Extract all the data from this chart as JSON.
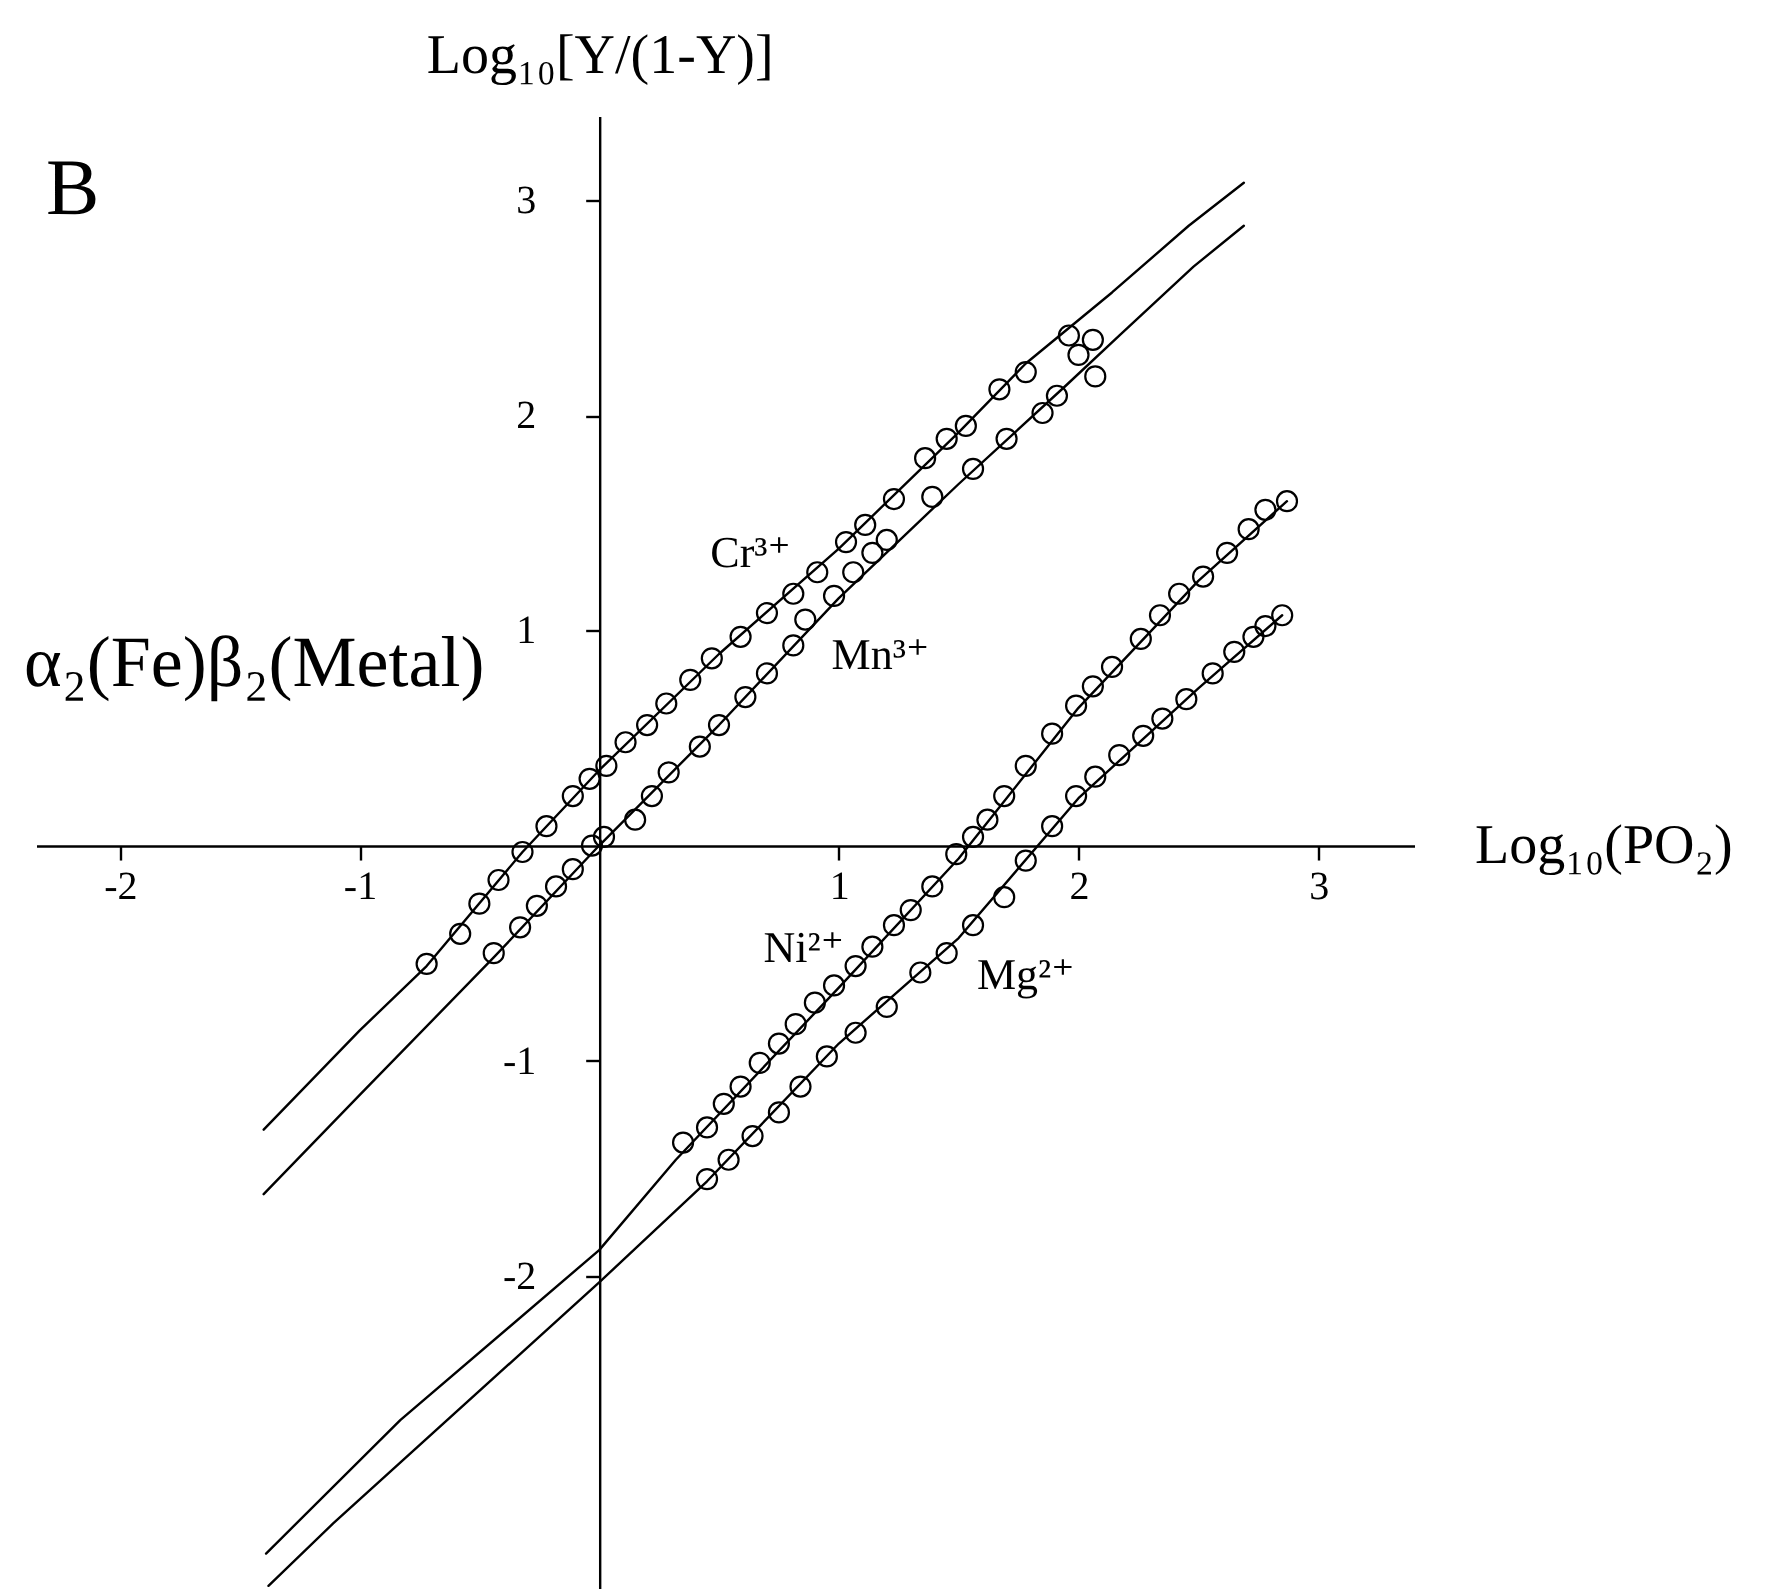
{
  "chart_data": {
    "type": "scatter",
    "annotations": [
      "B",
      "α₂(Fe)β₂(Metal)"
    ],
    "xlabel": "Log₁₀(PO₂)",
    "ylabel": "Log₁₀[Y/(1-Y)]",
    "xlim": [
      -2.35,
      3.4
    ],
    "ylim": [
      -3.45,
      3.39
    ],
    "xticks": [
      -2,
      -1,
      1,
      2,
      3
    ],
    "yticks": [
      -2,
      -1,
      1,
      2,
      3
    ],
    "marker": "circle",
    "series": [
      {
        "name": "Cr³⁺",
        "color": "#000000",
        "x": [
          -0.72,
          -0.58,
          -0.5,
          -0.42,
          -0.32,
          -0.22,
          -0.11,
          -0.04,
          0.03,
          0.11,
          0.2,
          0.28,
          0.38,
          0.47,
          0.59,
          0.7,
          0.81,
          0.91,
          1.03,
          1.11,
          1.23,
          1.36,
          1.45,
          1.53,
          1.67,
          1.78,
          1.96,
          2.0,
          2.06
        ],
        "values": [
          -0.55,
          -0.41,
          -0.27,
          -0.16,
          -0.03,
          0.09,
          0.23,
          0.31,
          0.37,
          0.48,
          0.56,
          0.66,
          0.77,
          0.87,
          0.97,
          1.08,
          1.17,
          1.27,
          1.41,
          1.49,
          1.61,
          1.8,
          1.89,
          1.95,
          2.12,
          2.2,
          2.37,
          2.28,
          2.35
        ]
      },
      {
        "name": "Mn³⁺",
        "color": "#000000",
        "x": [
          -0.44,
          -0.33,
          -0.26,
          -0.18,
          -0.11,
          -0.03,
          0.02,
          0.15,
          0.22,
          0.29,
          0.42,
          0.5,
          0.61,
          0.7,
          0.81,
          0.86,
          0.98,
          1.06,
          1.14,
          1.2,
          1.39,
          1.56,
          1.7,
          1.85,
          1.91,
          2.07
        ],
        "values": [
          -0.5,
          -0.38,
          -0.28,
          -0.19,
          -0.11,
          0.0,
          0.04,
          0.12,
          0.23,
          0.34,
          0.46,
          0.56,
          0.69,
          0.8,
          0.93,
          1.05,
          1.16,
          1.27,
          1.36,
          1.42,
          1.62,
          1.75,
          1.89,
          2.01,
          2.09,
          2.18
        ]
      },
      {
        "name": "Ni²⁺",
        "color": "#000000",
        "x": [
          0.35,
          0.45,
          0.52,
          0.59,
          0.67,
          0.75,
          0.82,
          0.9,
          0.98,
          1.07,
          1.14,
          1.23,
          1.3,
          1.39,
          1.49,
          1.56,
          1.62,
          1.69,
          1.78,
          1.89,
          1.99,
          2.06,
          2.14,
          2.26,
          2.34,
          2.42,
          2.52,
          2.62,
          2.71,
          2.78,
          2.87
        ],
        "values": [
          -1.38,
          -1.31,
          -1.2,
          -1.12,
          -1.01,
          -0.92,
          -0.83,
          -0.73,
          -0.65,
          -0.56,
          -0.47,
          -0.37,
          -0.3,
          -0.19,
          -0.04,
          0.04,
          0.12,
          0.23,
          0.37,
          0.52,
          0.65,
          0.74,
          0.83,
          0.96,
          1.07,
          1.17,
          1.25,
          1.36,
          1.47,
          1.56,
          1.6
        ]
      },
      {
        "name": "Mg²⁺",
        "color": "#000000",
        "x": [
          0.45,
          0.54,
          0.64,
          0.75,
          0.84,
          0.95,
          1.07,
          1.2,
          1.34,
          1.45,
          1.56,
          1.69,
          1.78,
          1.89,
          1.99,
          2.07,
          2.17,
          2.27,
          2.35,
          2.45,
          2.56,
          2.65,
          2.73,
          2.78,
          2.85
        ],
        "values": [
          -1.55,
          -1.46,
          -1.35,
          -1.24,
          -1.12,
          -0.98,
          -0.87,
          -0.75,
          -0.59,
          -0.5,
          -0.37,
          -0.24,
          -0.07,
          0.09,
          0.23,
          0.32,
          0.42,
          0.51,
          0.59,
          0.68,
          0.8,
          0.9,
          0.97,
          1.02,
          1.07
        ]
      },
      {
        "type": "line",
        "marker": "none",
        "color": "#000000",
        "x": [
          -1.4,
          -1.0,
          -0.72,
          -0.32,
          0,
          0.5,
          1.0,
          1.5,
          1.78,
          2.14,
          2.46,
          2.69
        ],
        "values": [
          -1.32,
          -0.86,
          -0.56,
          -0.03,
          0.35,
          0.89,
          1.38,
          1.92,
          2.24,
          2.57,
          2.88,
          3.08
        ]
      },
      {
        "type": "line",
        "marker": "none",
        "color": "#000000",
        "x": [
          -1.4,
          -1.0,
          -0.44,
          0,
          0.5,
          1.0,
          1.5,
          1.95,
          2.17,
          2.48,
          2.69
        ],
        "values": [
          -1.62,
          -1.16,
          -0.52,
          0.0,
          0.56,
          1.15,
          1.68,
          2.14,
          2.37,
          2.69,
          2.88
        ]
      },
      {
        "type": "line",
        "marker": "none",
        "color": "#000000",
        "x": [
          -1.39,
          -0.83,
          0,
          0.32,
          1.0,
          1.5,
          2.0,
          2.5,
          2.87
        ],
        "values": [
          -3.29,
          -2.67,
          -1.88,
          -1.46,
          -0.66,
          -0.06,
          0.64,
          1.23,
          1.6
        ]
      },
      {
        "type": "line",
        "marker": "none",
        "color": "#000000",
        "x": [
          -1.38,
          -1.11,
          0,
          0.45,
          1.0,
          1.5,
          2.0,
          2.5,
          2.85
        ],
        "values": [
          -3.44,
          -3.15,
          -2.03,
          -1.56,
          -0.92,
          -0.43,
          0.22,
          0.73,
          1.07
        ]
      }
    ]
  }
}
